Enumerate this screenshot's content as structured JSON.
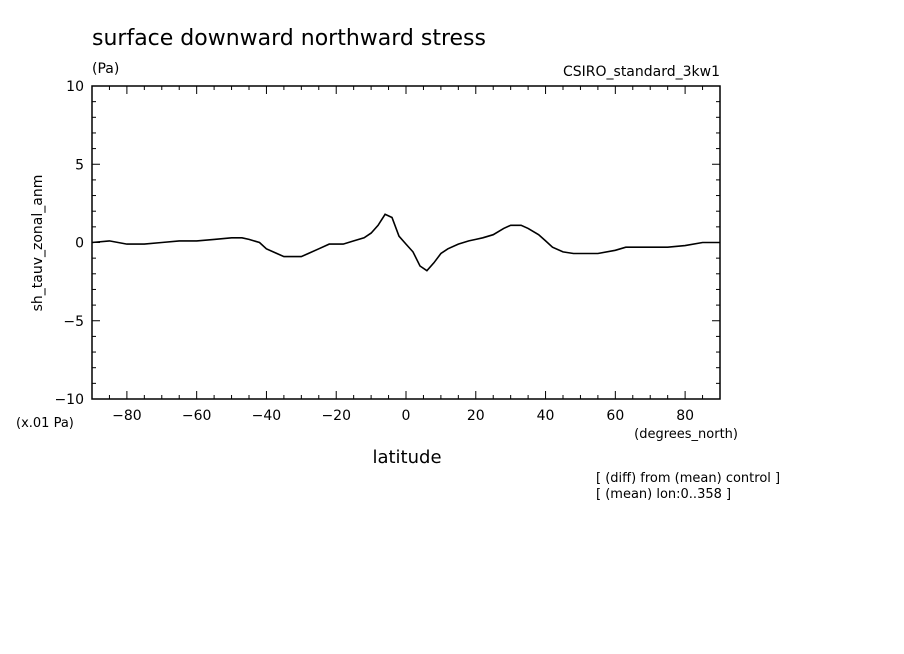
{
  "chart_data": {
    "type": "line",
    "title": "surface downward northward stress",
    "units_label": "(Pa)",
    "model_label": "CSIRO_standard_3kw1",
    "ylabel": "sh_tauv_zonal_anm",
    "y_scale_label": "(x.01 Pa)",
    "xlabel": "latitude",
    "x_units_label": "(degrees_north)",
    "notes": [
      "[ (diff) from (mean) control ]",
      "[ (mean) lon:0..358 ]"
    ],
    "xlim": [
      -90,
      90
    ],
    "ylim": [
      -10,
      10
    ],
    "x_ticks": [
      -80,
      -60,
      -40,
      -20,
      0,
      20,
      40,
      60,
      80
    ],
    "y_ticks": [
      -10,
      -5,
      0,
      5,
      10
    ],
    "grid": false,
    "series": [
      {
        "x": [
          -90,
          -85,
          -80,
          -75,
          -70,
          -65,
          -60,
          -55,
          -50,
          -47,
          -45,
          -42,
          -40,
          -37,
          -35,
          -33,
          -30,
          -28,
          -25,
          -22,
          -20,
          -18,
          -15,
          -12,
          -10,
          -8,
          -6,
          -4,
          -2,
          0,
          2,
          4,
          6,
          8,
          10,
          12,
          15,
          18,
          20,
          22,
          25,
          28,
          30,
          33,
          35,
          38,
          40,
          42,
          45,
          48,
          50,
          55,
          60,
          63,
          65,
          70,
          75,
          80,
          85,
          90
        ],
        "y": [
          0,
          0.1,
          -0.1,
          -0.1,
          0,
          0.1,
          0.1,
          0.2,
          0.3,
          0.3,
          0.2,
          0,
          -0.4,
          -0.7,
          -0.9,
          -0.9,
          -0.9,
          -0.7,
          -0.4,
          -0.1,
          -0.1,
          -0.1,
          0.1,
          0.3,
          0.6,
          1.1,
          1.8,
          1.6,
          0.4,
          -0.1,
          -0.6,
          -1.5,
          -1.8,
          -1.3,
          -0.7,
          -0.4,
          -0.1,
          0.1,
          0.2,
          0.3,
          0.5,
          0.9,
          1.1,
          1.1,
          0.9,
          0.5,
          0.1,
          -0.3,
          -0.6,
          -0.7,
          -0.7,
          -0.7,
          -0.5,
          -0.3,
          -0.3,
          -0.3,
          -0.3,
          -0.2,
          0,
          0
        ]
      }
    ]
  }
}
